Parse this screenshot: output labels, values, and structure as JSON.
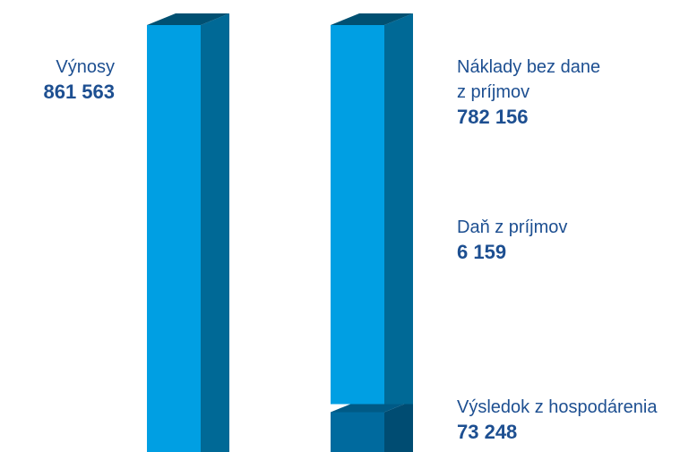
{
  "chart_data": {
    "type": "bar",
    "title": "",
    "xlabel": "",
    "ylabel": "",
    "stacked": true,
    "series": [
      {
        "name": "Výnosy",
        "value": 861563,
        "value_label": "861 563",
        "color": "#009fe3"
      },
      {
        "name": "Výsledok z hospodárenia",
        "value": 73248,
        "value_label": "73 248",
        "color": "#006a9e"
      },
      {
        "name": "Daň z príjmov",
        "value": 6159,
        "value_label": "6 159",
        "color": "#009fe3"
      },
      {
        "name": "Náklady bez dane z príjmov",
        "value": 782156,
        "value_label": "782 156",
        "color": "#009fe3"
      }
    ],
    "labels": {
      "revenue": "Výnosy",
      "costs_line1": "Náklady bez dane",
      "costs_line2": "z príjmov",
      "tax": "Daň z príjmov",
      "result": "Výsledok z hospodárenia"
    }
  }
}
